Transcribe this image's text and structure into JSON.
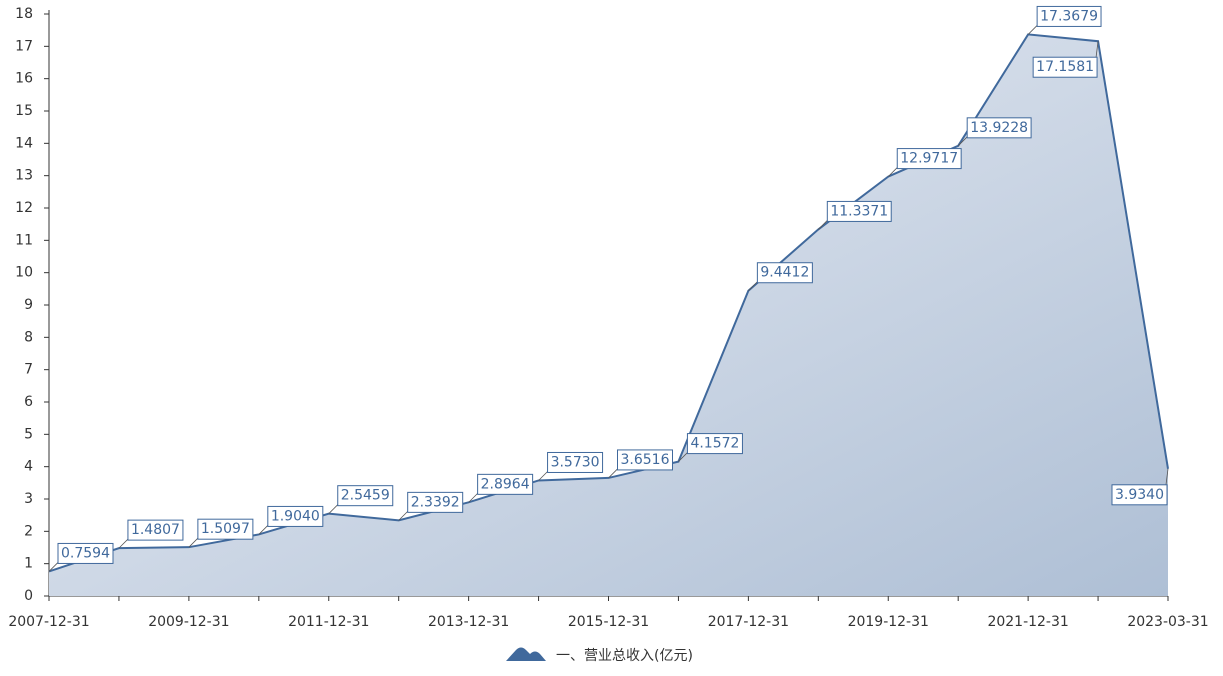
{
  "chart_data": {
    "type": "area",
    "categories": [
      "2007-12-31",
      null,
      "2009-12-31",
      null,
      "2011-12-31",
      null,
      "2013-12-31",
      null,
      "2015-12-31",
      null,
      "2017-12-31",
      null,
      "2019-12-31",
      null,
      "2021-12-31",
      null,
      "2023-03-31"
    ],
    "series": [
      {
        "name": "一、营业总收入(亿元)",
        "color": "#40699c",
        "values": [
          0.7594,
          1.4807,
          1.5097,
          1.904,
          2.5459,
          2.3392,
          2.8964,
          3.573,
          3.6516,
          4.1572,
          9.4412,
          11.3371,
          12.9717,
          13.9228,
          17.3679,
          17.1581,
          3.934
        ],
        "value_labels": [
          "0.7594",
          "1.4807",
          "1.5097",
          "1.9040",
          "2.5459",
          "2.3392",
          "2.8964",
          "3.5730",
          "3.6516",
          "4.1572",
          "9.4412",
          "11.3371",
          "12.9717",
          "13.9228",
          "17.3679",
          "17.1581",
          "3.9340"
        ]
      }
    ],
    "ylim": [
      0,
      18
    ],
    "yticks": [
      0,
      1,
      2,
      3,
      4,
      5,
      6,
      7,
      8,
      9,
      10,
      11,
      12,
      13,
      14,
      15,
      16,
      17,
      18
    ],
    "legend": "bottom"
  }
}
